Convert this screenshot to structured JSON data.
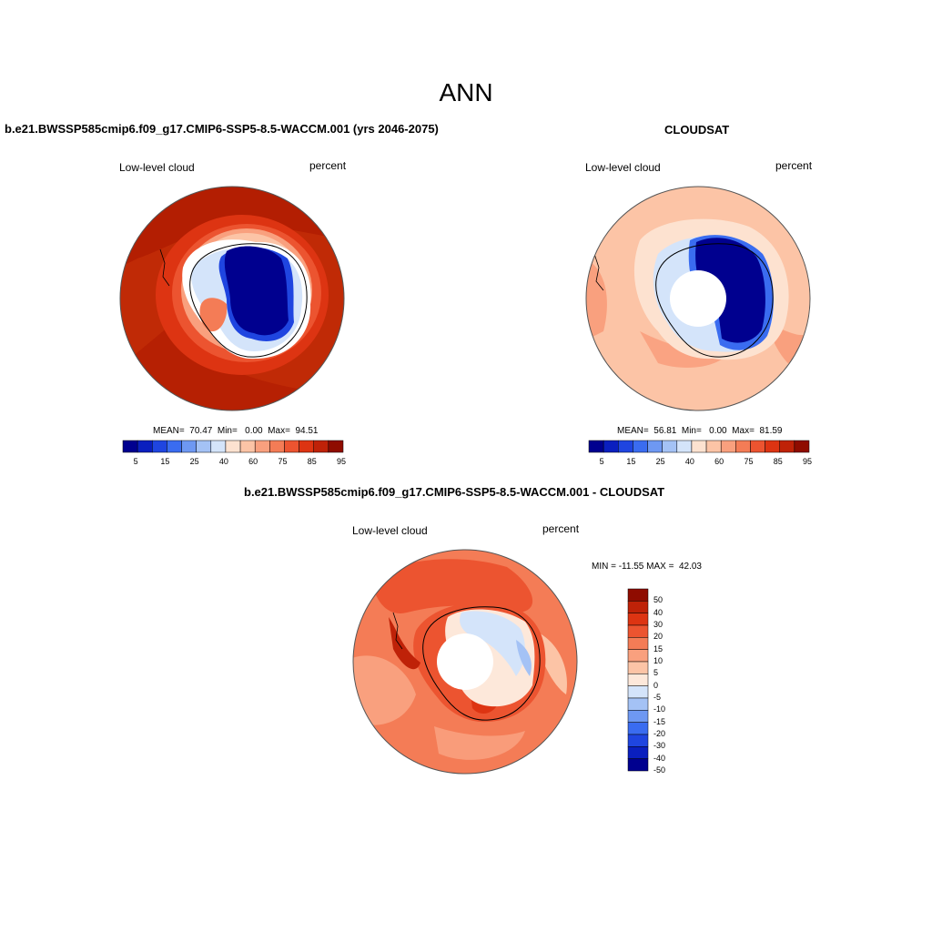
{
  "figure": {
    "title": "ANN"
  },
  "panels": {
    "model": {
      "title": "b.e21.BWSSP585cmip6.f09_g17.CMIP6-SSP5-8.5-WACCM.001 (yrs 2046-2075)",
      "field": "Low-level cloud",
      "units": "percent",
      "stats": "MEAN=  70.47  Min=   0.00  Max=  94.51"
    },
    "obs": {
      "title": "CLOUDSAT",
      "field": "Low-level cloud",
      "units": "percent",
      "stats": "MEAN=  56.81  Min=   0.00  Max=  81.59"
    },
    "diff": {
      "title": "b.e21.BWSSP585cmip6.f09_g17.CMIP6-SSP5-8.5-WACCM.001 - CLOUDSAT",
      "field": "Low-level cloud",
      "units": "percent",
      "stats": "MIN = -11.55 MAX =  42.03"
    }
  },
  "colorbars": {
    "abs_colors": [
      "#00008f",
      "#0a1fbf",
      "#1f45e0",
      "#3a6cf0",
      "#6e98f2",
      "#a4c2f5",
      "#d4e4fa",
      "#fde2d0",
      "#fcc4a6",
      "#f9a07e",
      "#f47c56",
      "#ec5430",
      "#dd3412",
      "#bf2208",
      "#8f0c00"
    ],
    "abs_labels": [
      "5",
      "15",
      "25",
      "40",
      "60",
      "75",
      "85",
      "95"
    ],
    "diff_colors": [
      "#00008f",
      "#0a1fbf",
      "#1f45e0",
      "#3a6cf0",
      "#6e98f2",
      "#a4c2f5",
      "#d4e4fa",
      "#fde8da",
      "#fcc4a6",
      "#f9a07e",
      "#f47c56",
      "#ec5430",
      "#dd3412",
      "#bf2208",
      "#8f0c00"
    ],
    "diff_labels": [
      "50",
      "40",
      "30",
      "20",
      "15",
      "10",
      "5",
      "0",
      "-5",
      "-10",
      "-15",
      "-20",
      "-30",
      "-40",
      "-50"
    ]
  },
  "chart_data": [
    {
      "type": "heatmap",
      "title": "b.e21.BWSSP585cmip6.f09_g17.CMIP6-SSP5-8.5-WACCM.001 (yrs 2046-2075)",
      "field": "Low-level cloud",
      "units": "percent",
      "projection": "south-polar-stereographic",
      "mean": 70.47,
      "min": 0.0,
      "max": 94.51,
      "levels": [
        5,
        10,
        15,
        20,
        25,
        30,
        40,
        50,
        60,
        70,
        75,
        80,
        85,
        90,
        95
      ]
    },
    {
      "type": "heatmap",
      "title": "CLOUDSAT",
      "field": "Low-level cloud",
      "units": "percent",
      "projection": "south-polar-stereographic",
      "mean": 56.81,
      "min": 0.0,
      "max": 81.59,
      "levels": [
        5,
        10,
        15,
        20,
        25,
        30,
        40,
        50,
        60,
        70,
        75,
        80,
        85,
        90,
        95
      ]
    },
    {
      "type": "heatmap",
      "title": "b.e21.BWSSP585cmip6.f09_g17.CMIP6-SSP5-8.5-WACCM.001 - CLOUDSAT",
      "field": "Low-level cloud",
      "units": "percent",
      "projection": "south-polar-stereographic",
      "min": -11.55,
      "max": 42.03,
      "levels": [
        -50,
        -40,
        -30,
        -20,
        -15,
        -10,
        -5,
        0,
        5,
        10,
        15,
        20,
        30,
        40,
        50
      ]
    }
  ]
}
